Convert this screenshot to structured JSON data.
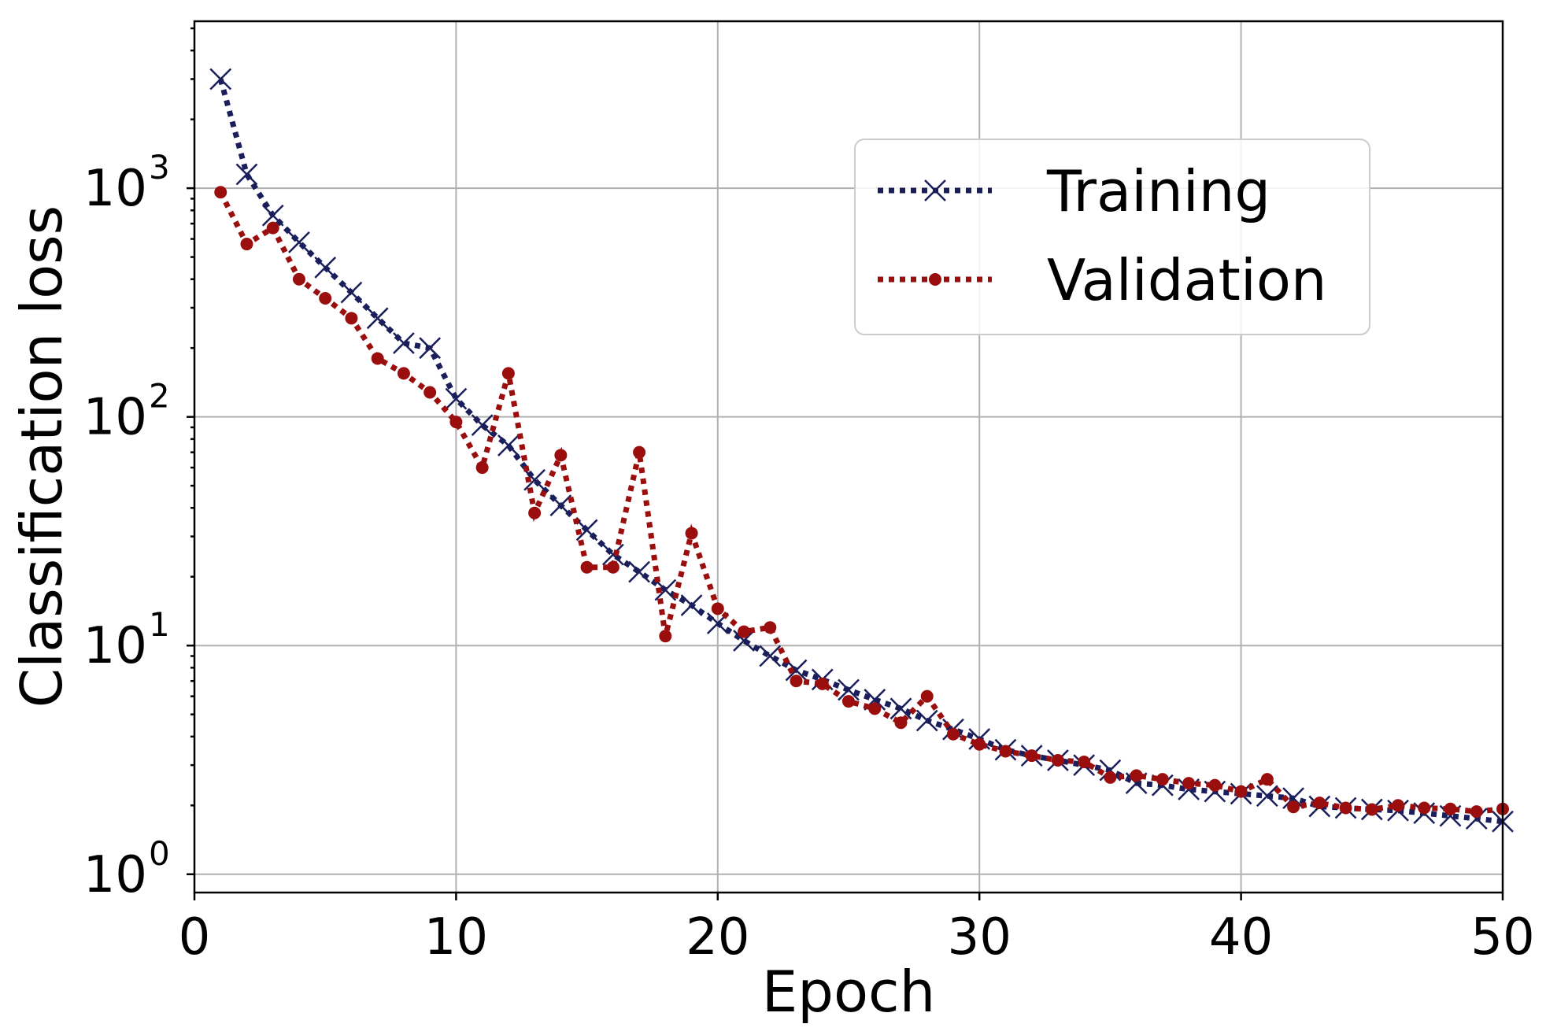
{
  "chart_data": {
    "type": "line",
    "title": "",
    "xlabel": "Epoch",
    "ylabel": "Classification loss",
    "xlim": [
      0,
      50
    ],
    "ylim_log10": [
      -0.08,
      3.73
    ],
    "yscale": "log",
    "grid": true,
    "legend_placement": "upper-right",
    "x_ticks": [
      "0",
      "10",
      "20",
      "30",
      "40",
      "50"
    ],
    "y_ticks": [
      {
        "base": "10",
        "exp": "0",
        "value": 1
      },
      {
        "base": "10",
        "exp": "1",
        "value": 10
      },
      {
        "base": "10",
        "exp": "2",
        "value": 100
      },
      {
        "base": "10",
        "exp": "3",
        "value": 1000
      }
    ],
    "x": [
      1,
      2,
      3,
      4,
      5,
      6,
      7,
      8,
      9,
      10,
      11,
      12,
      13,
      14,
      15,
      16,
      17,
      18,
      19,
      20,
      21,
      22,
      23,
      24,
      25,
      26,
      27,
      28,
      29,
      30,
      31,
      32,
      33,
      34,
      35,
      36,
      37,
      38,
      39,
      40,
      41,
      42,
      43,
      44,
      45,
      46,
      47,
      48,
      49,
      50
    ],
    "series": [
      {
        "name": "Training",
        "color": "#1a1f5c",
        "marker": "x",
        "linestyle": "dotted",
        "values": [
          3000,
          1150,
          760,
          580,
          450,
          350,
          270,
          210,
          200,
          120,
          92,
          75,
          53,
          41,
          32,
          25,
          21,
          17.5,
          15,
          12.5,
          10.5,
          9,
          7.8,
          7.1,
          6.4,
          5.8,
          5.3,
          4.7,
          4.3,
          3.9,
          3.5,
          3.3,
          3.15,
          3.0,
          2.85,
          2.5,
          2.45,
          2.35,
          2.3,
          2.25,
          2.2,
          2.15,
          1.98,
          1.95,
          1.92,
          1.9,
          1.85,
          1.8,
          1.75,
          1.7
        ]
      },
      {
        "name": "Validation",
        "color": "#9b0e0e",
        "marker": "o",
        "linestyle": "dotted",
        "values": [
          960,
          570,
          670,
          400,
          330,
          270,
          180,
          155,
          128,
          95,
          60,
          155,
          38,
          68,
          22,
          22,
          70,
          11,
          31,
          14.5,
          11.5,
          12,
          7,
          6.8,
          5.7,
          5.3,
          4.6,
          6,
          4.1,
          3.7,
          3.45,
          3.3,
          3.15,
          3.1,
          2.65,
          2.7,
          2.6,
          2.5,
          2.45,
          2.3,
          2.6,
          1.97,
          2.05,
          1.95,
          1.92,
          2.0,
          1.95,
          1.93,
          1.88,
          1.93
        ]
      }
    ]
  }
}
